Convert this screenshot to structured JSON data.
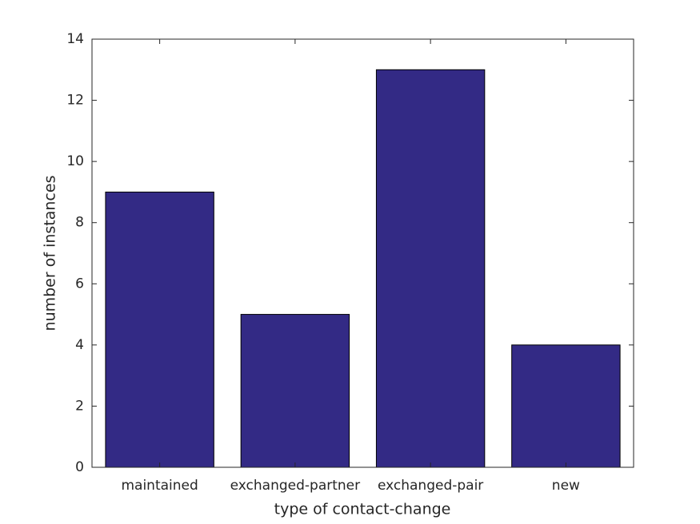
{
  "chart_data": {
    "type": "bar",
    "xlabel": "type of contact-change",
    "ylabel": "number of instances",
    "categories": [
      "maintained",
      "exchanged-partner",
      "exchanged-pair",
      "new"
    ],
    "values": [
      9,
      5,
      13,
      4
    ],
    "color": "#332a85",
    "ylim": [
      0,
      14
    ],
    "yticks": [
      0,
      2,
      4,
      6,
      8,
      10,
      12,
      14
    ]
  }
}
